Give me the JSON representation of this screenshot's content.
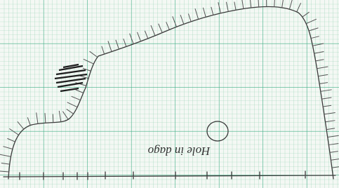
{
  "annotation": "Hole in dago"
}
